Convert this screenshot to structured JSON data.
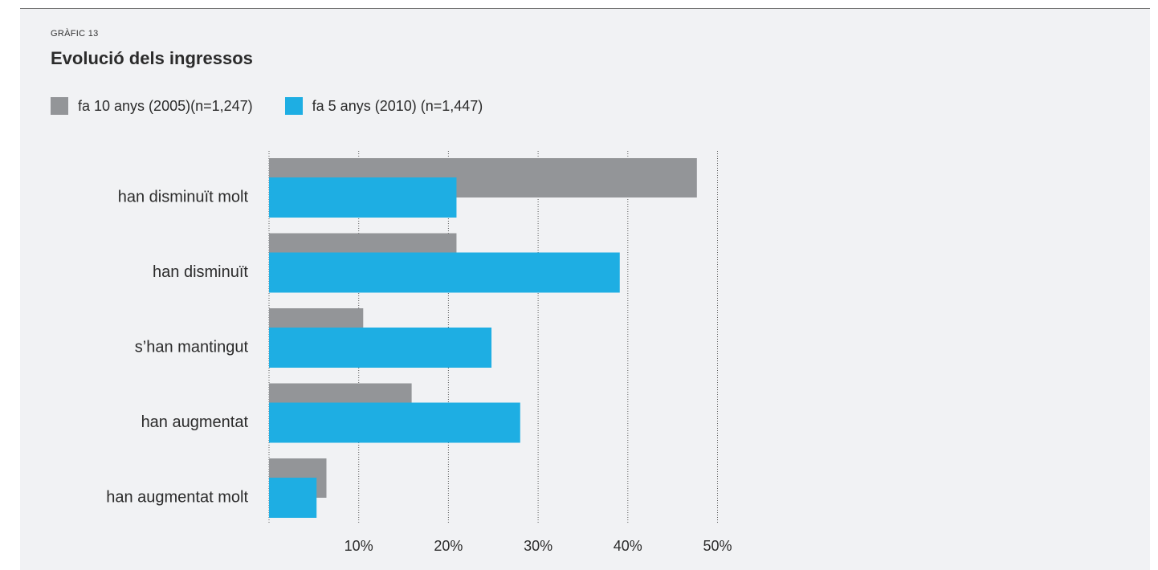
{
  "header": {
    "eyebrow": "GRÀFIC 13",
    "title": "Evolució dels ingressos"
  },
  "colors": {
    "series_2005": "#939598",
    "series_2010": "#1eaee3",
    "grid": "#555555",
    "text": "#2b2b2b"
  },
  "chart_data": {
    "type": "bar",
    "orientation": "horizontal",
    "title": "Evolució dels ingressos",
    "categories": [
      "han disminuït molt",
      "han disminuït",
      "s’han mantingut",
      "han augmentat",
      "han augmentat molt"
    ],
    "series": [
      {
        "name": "fa 10 anys (2005)(n=1,247)",
        "color": "#939598",
        "values": [
          47.7,
          20.9,
          10.5,
          15.9,
          6.4
        ]
      },
      {
        "name": "fa 5 anys (2010) (n=1,447)",
        "color": "#1eaee3",
        "values": [
          20.9,
          39.1,
          24.8,
          28.0,
          5.3
        ]
      }
    ],
    "xlim": [
      0,
      52
    ],
    "xticks": [
      10,
      20,
      30,
      40,
      50
    ],
    "xtick_labels": [
      "10%",
      "20%",
      "30%",
      "40%",
      "50%"
    ],
    "grid": "vertical dotted",
    "legend_position": "top-left"
  }
}
